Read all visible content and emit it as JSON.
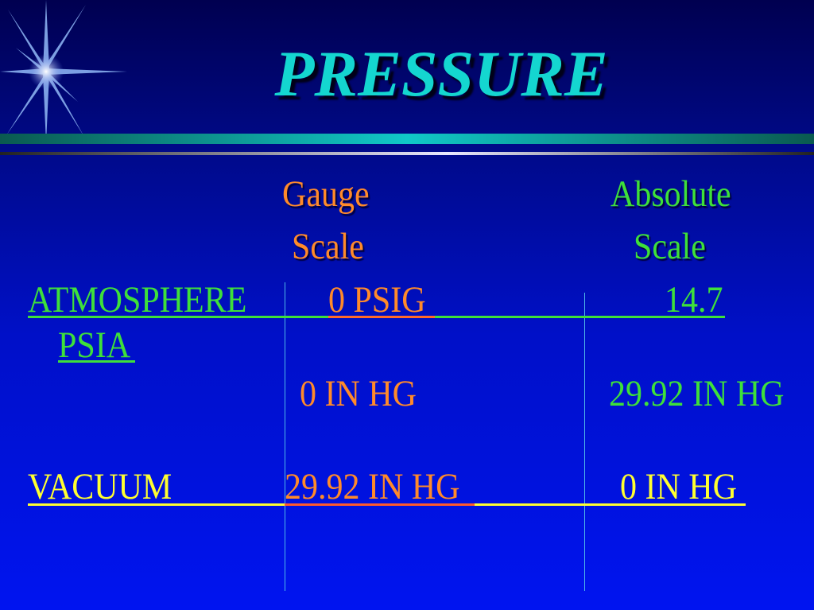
{
  "slide": {
    "title": "PRESSURE"
  },
  "colors": {
    "title": "#14d6d0",
    "gauge": "#ff8a2a",
    "absolute": "#3ee03a",
    "vacuum": "#ffff30"
  },
  "icons": {
    "decoration": "star-burst-icon"
  },
  "table": {
    "headers": {
      "gauge_line1": "Gauge",
      "gauge_line2": "Scale",
      "absolute_line1": "Absolute",
      "absolute_line2": "Scale"
    },
    "rows": [
      {
        "label": "ATMOSPHERE",
        "gauge": "0 PSIG",
        "absolute": "14.7",
        "absolute_wrap": "PSIA"
      },
      {
        "label": "",
        "gauge": "0 IN HG",
        "absolute": "29.92 IN HG"
      },
      {
        "label": "VACUUM",
        "gauge": "29.92 IN HG",
        "absolute": "0 IN HG"
      }
    ]
  }
}
